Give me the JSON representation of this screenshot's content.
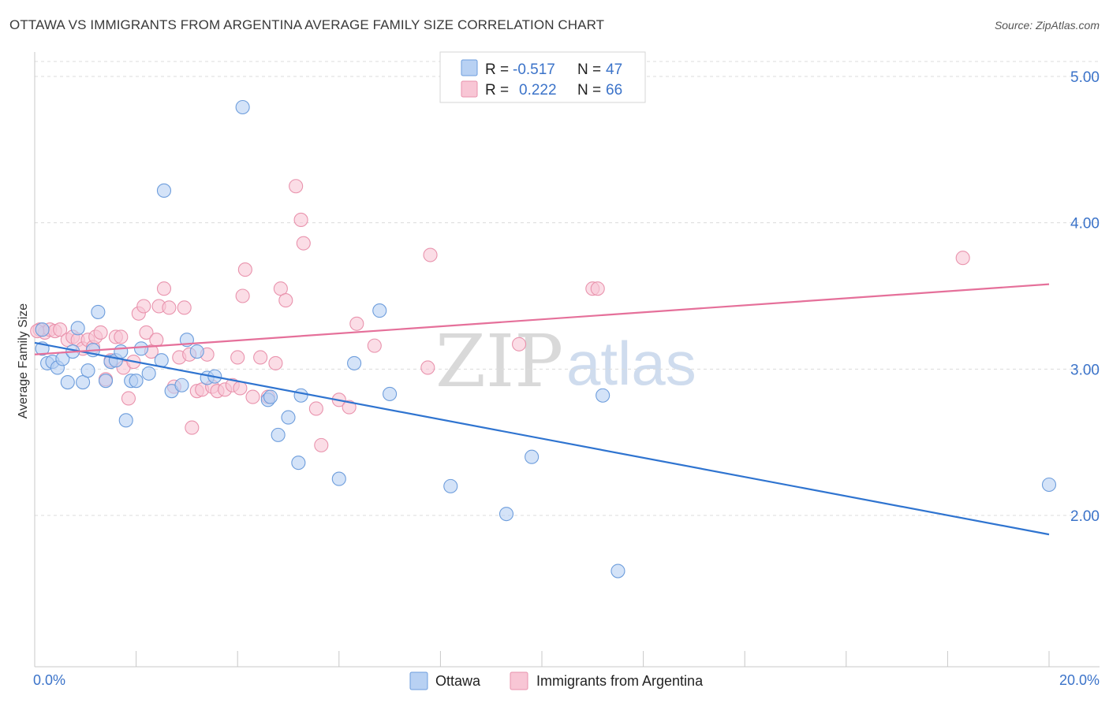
{
  "header": {
    "title": "OTTAWA VS IMMIGRANTS FROM ARGENTINA AVERAGE FAMILY SIZE CORRELATION CHART",
    "source": "Source: ZipAtlas.com"
  },
  "legend": {
    "rows": [
      {
        "r_label": "R =",
        "r_value": "-0.517",
        "n_label": "N =",
        "n_value": "47"
      },
      {
        "r_label": "R =",
        "r_value": "0.222",
        "n_label": "N =",
        "n_value": "66"
      }
    ]
  },
  "watermark": {
    "zip": "ZIP",
    "atlas": "atlas"
  },
  "colors": {
    "ottawa_fill": "#b8d1f3",
    "ottawa_stroke": "#6d9ddc",
    "ottawa_line": "#2f74d0",
    "argentina_fill": "#f8c6d5",
    "argentina_stroke": "#e993ad",
    "argentina_line": "#e5709a",
    "grid": "#dcdcdc",
    "tick_text": "#3b73c9"
  },
  "chart_data": {
    "type": "scatter",
    "title": "OTTAWA VS IMMIGRANTS FROM ARGENTINA AVERAGE FAMILY SIZE CORRELATION CHART",
    "xlabel": "",
    "ylabel": "Average Family Size",
    "xlim": [
      0,
      20
    ],
    "ylim": [
      1.0,
      5.1
    ],
    "x_tick_labels": [
      "0.0%",
      "20.0%"
    ],
    "y_ticks": [
      2.0,
      3.0,
      4.0,
      5.0
    ],
    "y_tick_labels": [
      "2.00",
      "3.00",
      "4.00",
      "5.00"
    ],
    "grid": true,
    "legend_position": "top-center",
    "series": [
      {
        "name": "Ottawa",
        "trend": {
          "x": [
            0.0,
            20.0
          ],
          "y": [
            3.18,
            1.87
          ]
        },
        "points": [
          [
            0.15,
            3.14
          ],
          [
            0.25,
            3.04
          ],
          [
            0.35,
            3.05
          ],
          [
            0.45,
            3.01
          ],
          [
            0.55,
            3.07
          ],
          [
            0.65,
            2.91
          ],
          [
            0.75,
            3.12
          ],
          [
            0.85,
            3.28
          ],
          [
            0.95,
            2.91
          ],
          [
            1.05,
            2.99
          ],
          [
            1.15,
            3.13
          ],
          [
            1.25,
            3.39
          ],
          [
            1.4,
            2.92
          ],
          [
            1.5,
            3.05
          ],
          [
            1.6,
            3.06
          ],
          [
            1.7,
            3.12
          ],
          [
            1.8,
            2.65
          ],
          [
            1.9,
            2.92
          ],
          [
            2.0,
            2.92
          ],
          [
            2.1,
            3.14
          ],
          [
            2.25,
            2.97
          ],
          [
            2.5,
            3.06
          ],
          [
            2.55,
            4.22
          ],
          [
            2.7,
            2.85
          ],
          [
            2.9,
            2.89
          ],
          [
            3.0,
            3.2
          ],
          [
            3.2,
            3.12
          ],
          [
            3.4,
            2.94
          ],
          [
            3.55,
            2.95
          ],
          [
            4.1,
            4.79
          ],
          [
            4.6,
            2.79
          ],
          [
            4.65,
            2.81
          ],
          [
            4.8,
            2.55
          ],
          [
            5.0,
            2.67
          ],
          [
            5.2,
            2.36
          ],
          [
            5.25,
            2.82
          ],
          [
            6.0,
            2.25
          ],
          [
            6.3,
            3.04
          ],
          [
            6.8,
            3.4
          ],
          [
            7.0,
            2.83
          ],
          [
            8.2,
            2.2
          ],
          [
            9.3,
            2.01
          ],
          [
            9.8,
            2.4
          ],
          [
            11.2,
            2.82
          ],
          [
            11.5,
            1.62
          ],
          [
            20.0,
            2.21
          ],
          [
            0.15,
            3.27
          ]
        ]
      },
      {
        "name": "Immigrants from Argentina",
        "trend": {
          "x": [
            0.0,
            20.0
          ],
          "y": [
            3.1,
            3.58
          ]
        },
        "points": [
          [
            0.1,
            3.27
          ],
          [
            0.2,
            3.25
          ],
          [
            0.3,
            3.27
          ],
          [
            0.4,
            3.26
          ],
          [
            0.5,
            3.27
          ],
          [
            0.65,
            3.2
          ],
          [
            0.75,
            3.22
          ],
          [
            0.85,
            3.2
          ],
          [
            0.95,
            3.14
          ],
          [
            1.05,
            3.2
          ],
          [
            1.15,
            3.15
          ],
          [
            1.2,
            3.22
          ],
          [
            1.3,
            3.25
          ],
          [
            1.4,
            2.93
          ],
          [
            1.5,
            3.06
          ],
          [
            1.6,
            3.22
          ],
          [
            1.7,
            3.22
          ],
          [
            1.75,
            3.01
          ],
          [
            1.85,
            2.8
          ],
          [
            1.95,
            3.05
          ],
          [
            2.05,
            3.38
          ],
          [
            2.15,
            3.43
          ],
          [
            2.2,
            3.25
          ],
          [
            2.3,
            3.12
          ],
          [
            2.4,
            3.2
          ],
          [
            2.45,
            3.43
          ],
          [
            2.55,
            3.55
          ],
          [
            2.65,
            3.42
          ],
          [
            2.75,
            2.88
          ],
          [
            2.85,
            3.08
          ],
          [
            2.95,
            3.42
          ],
          [
            3.05,
            3.1
          ],
          [
            3.1,
            2.6
          ],
          [
            3.2,
            2.85
          ],
          [
            3.3,
            2.86
          ],
          [
            3.4,
            3.1
          ],
          [
            3.5,
            2.88
          ],
          [
            3.6,
            2.85
          ],
          [
            3.75,
            2.86
          ],
          [
            3.9,
            2.89
          ],
          [
            4.0,
            3.08
          ],
          [
            4.05,
            2.87
          ],
          [
            4.1,
            3.5
          ],
          [
            4.15,
            3.68
          ],
          [
            4.3,
            2.81
          ],
          [
            4.45,
            3.08
          ],
          [
            4.6,
            2.81
          ],
          [
            4.75,
            3.04
          ],
          [
            4.85,
            3.55
          ],
          [
            4.95,
            3.47
          ],
          [
            5.15,
            4.25
          ],
          [
            5.25,
            4.02
          ],
          [
            5.3,
            3.86
          ],
          [
            5.55,
            2.73
          ],
          [
            5.65,
            2.48
          ],
          [
            6.0,
            2.79
          ],
          [
            6.2,
            2.74
          ],
          [
            6.35,
            3.31
          ],
          [
            6.7,
            3.16
          ],
          [
            7.75,
            3.01
          ],
          [
            7.8,
            3.78
          ],
          [
            9.55,
            3.17
          ],
          [
            11.0,
            3.55
          ],
          [
            11.1,
            3.55
          ],
          [
            18.3,
            3.76
          ],
          [
            0.05,
            3.26
          ]
        ]
      }
    ]
  }
}
